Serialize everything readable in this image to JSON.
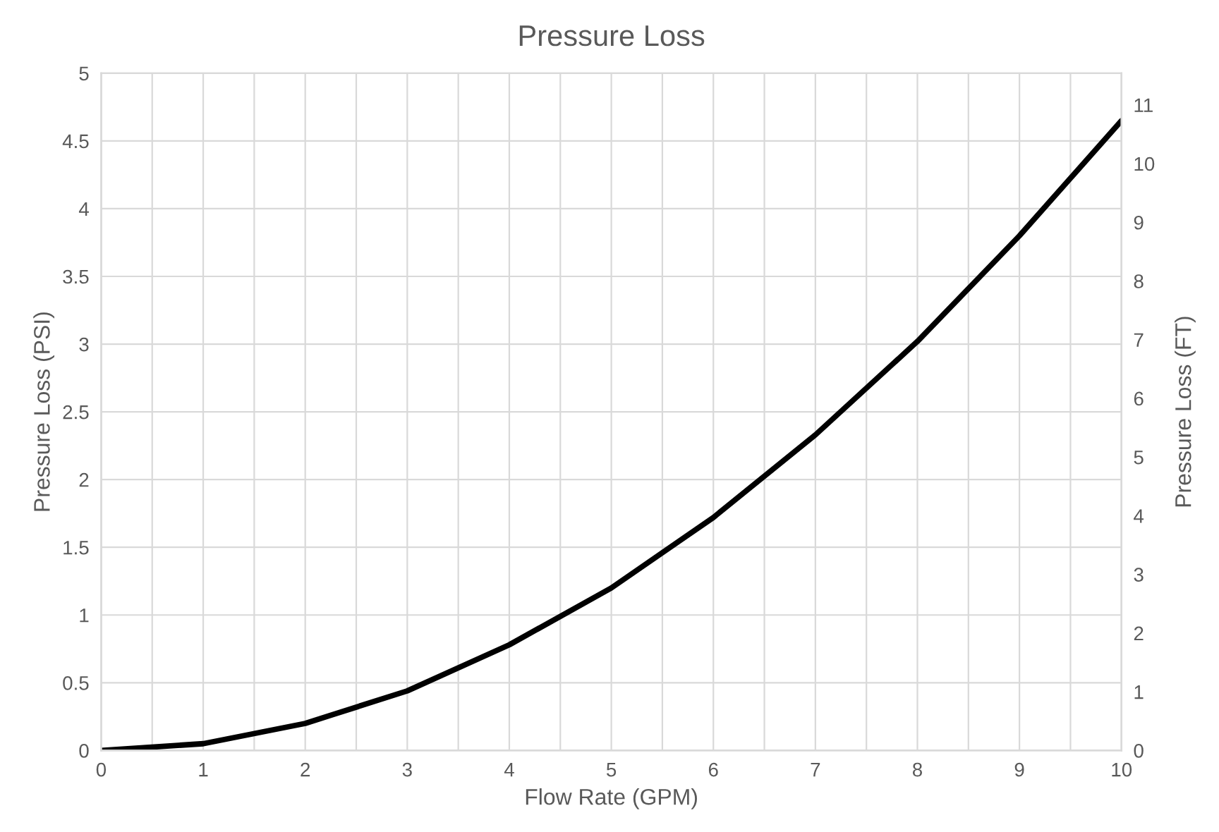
{
  "chart_data": {
    "type": "line",
    "title": "Pressure Loss",
    "xlabel": "Flow Rate (GPM)",
    "ylabel": "Pressure Loss (PSI)",
    "y2label": "Pressure Loss (FT)",
    "x": [
      0,
      1,
      2,
      3,
      4,
      5,
      6,
      7,
      8,
      9,
      10
    ],
    "series": [
      {
        "color": "#000000",
        "values": [
          0,
          0.05,
          0.2,
          0.44,
          0.78,
          1.2,
          1.72,
          2.33,
          3.02,
          3.8,
          4.65
        ]
      }
    ],
    "xlim": [
      0,
      10
    ],
    "xticks": [
      0,
      {
        "value": 0.5,
        "label": null
      },
      1,
      {
        "value": 1.5,
        "label": null
      },
      2,
      {
        "value": 2.5,
        "label": null
      },
      3,
      {
        "value": 3.5,
        "label": null
      },
      4,
      {
        "value": 4.5,
        "label": null
      },
      5,
      {
        "value": 5.5,
        "label": null
      },
      6,
      {
        "value": 6.5,
        "label": null
      },
      7,
      {
        "value": 7.5,
        "label": null
      },
      8,
      {
        "value": 8.5,
        "label": null
      },
      9,
      {
        "value": 9.5,
        "label": null
      },
      10
    ],
    "ylim": [
      0,
      5
    ],
    "yticks": [
      0,
      0.5,
      1,
      1.5,
      2,
      2.5,
      3,
      3.5,
      4,
      4.5,
      5
    ],
    "y2lim": [
      0,
      11.54
    ],
    "y2ticks": [
      0,
      1,
      2,
      3,
      4,
      5,
      6,
      7,
      8,
      9,
      10,
      11
    ],
    "grid": true,
    "marker": "none",
    "line_style": "solid",
    "legend": false
  }
}
